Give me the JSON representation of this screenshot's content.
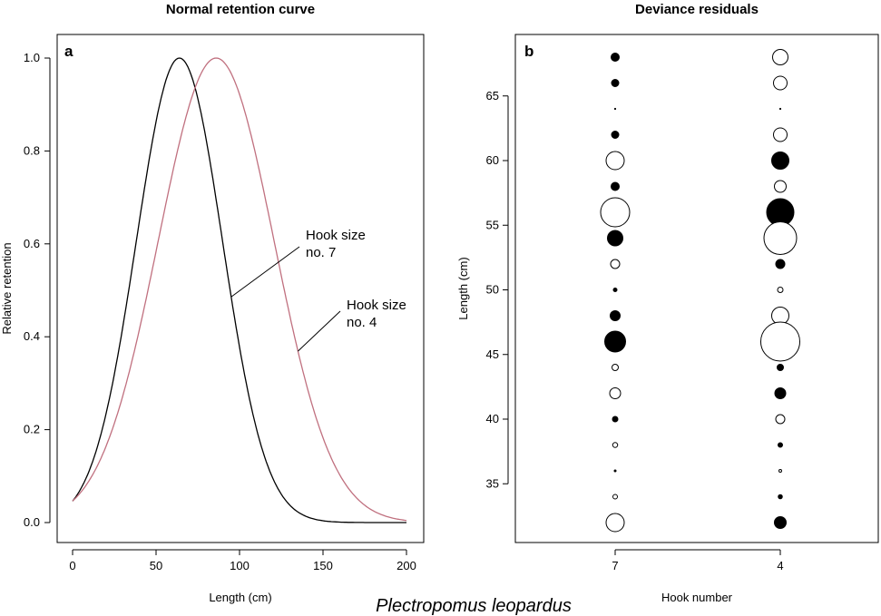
{
  "species_title": "Plectropomus leopardus",
  "chart_data": [
    {
      "type": "line",
      "panel_label": "a",
      "title": "Normal retention curve",
      "xlabel": "Length (cm)",
      "ylabel": "Relative retention",
      "xlim": [
        0,
        200
      ],
      "ylim": [
        0,
        1.0
      ],
      "xticks": [
        0,
        50,
        100,
        150,
        200
      ],
      "yticks": [
        0.0,
        0.2,
        0.4,
        0.6,
        0.8,
        1.0
      ],
      "ytick_labels": [
        "0.0",
        "0.2",
        "0.4",
        "0.6",
        "0.8",
        "1.0"
      ],
      "series": [
        {
          "name": "Hook size no. 7",
          "color": "#000000",
          "mode": 64,
          "sd": 25.8
        },
        {
          "name": "Hook size no. 4",
          "color": "#c0707f",
          "mode": 86,
          "sd": 34.7
        }
      ],
      "annotations": [
        {
          "line1": "Hook size",
          "line2": "no. 7",
          "series": 0,
          "at_x": 95
        },
        {
          "line1": "Hook size",
          "line2": "no. 4",
          "series": 1,
          "at_x": 135
        }
      ]
    },
    {
      "type": "scatter",
      "panel_label": "b",
      "title": "Deviance residuals",
      "xlabel": "Hook number",
      "ylabel": "Length (cm)",
      "categories": [
        "7",
        "4"
      ],
      "ylim": [
        31,
        68.5
      ],
      "yticks": [
        35,
        40,
        45,
        50,
        55,
        60,
        65
      ],
      "legend_note": "filled = positive residual, open = negative residual; size ~ |residual|",
      "points": [
        {
          "hook": "7",
          "length": 68,
          "residual": 0.9
        },
        {
          "hook": "7",
          "length": 66,
          "residual": 0.8
        },
        {
          "hook": "7",
          "length": 64,
          "residual": 0.05
        },
        {
          "hook": "7",
          "length": 62,
          "residual": 0.8
        },
        {
          "hook": "7",
          "length": 60,
          "residual": -2.0
        },
        {
          "hook": "7",
          "length": 58,
          "residual": 0.9
        },
        {
          "hook": "7",
          "length": 56,
          "residual": -3.2
        },
        {
          "hook": "7",
          "length": 54,
          "residual": 1.7
        },
        {
          "hook": "7",
          "length": 52,
          "residual": -1.0
        },
        {
          "hook": "7",
          "length": 50,
          "residual": 0.4
        },
        {
          "hook": "7",
          "length": 48,
          "residual": 1.1
        },
        {
          "hook": "7",
          "length": 46,
          "residual": 2.3
        },
        {
          "hook": "7",
          "length": 44,
          "residual": -0.7
        },
        {
          "hook": "7",
          "length": 42,
          "residual": -1.2
        },
        {
          "hook": "7",
          "length": 40,
          "residual": 0.6
        },
        {
          "hook": "7",
          "length": 38,
          "residual": -0.55
        },
        {
          "hook": "7",
          "length": 36,
          "residual": 0.2
        },
        {
          "hook": "7",
          "length": 34,
          "residual": -0.5
        },
        {
          "hook": "7",
          "length": 32,
          "residual": -2.0
        },
        {
          "hook": "4",
          "length": 68,
          "residual": -1.7
        },
        {
          "hook": "4",
          "length": 66,
          "residual": -1.5
        },
        {
          "hook": "4",
          "length": 64,
          "residual": -0.05
        },
        {
          "hook": "4",
          "length": 62,
          "residual": -1.5
        },
        {
          "hook": "4",
          "length": 60,
          "residual": 1.9
        },
        {
          "hook": "4",
          "length": 58,
          "residual": -1.3
        },
        {
          "hook": "4",
          "length": 56,
          "residual": 3.0
        },
        {
          "hook": "4",
          "length": 54,
          "residual": -3.6
        },
        {
          "hook": "4",
          "length": 52,
          "residual": 1.0
        },
        {
          "hook": "4",
          "length": 50,
          "residual": -0.6
        },
        {
          "hook": "4",
          "length": 48,
          "residual": -1.9
        },
        {
          "hook": "4",
          "length": 46,
          "residual": -4.3
        },
        {
          "hook": "4",
          "length": 44,
          "residual": 0.7
        },
        {
          "hook": "4",
          "length": 42,
          "residual": 1.2
        },
        {
          "hook": "4",
          "length": 40,
          "residual": -1.0
        },
        {
          "hook": "4",
          "length": 38,
          "residual": 0.5
        },
        {
          "hook": "4",
          "length": 36,
          "residual": -0.3
        },
        {
          "hook": "4",
          "length": 34,
          "residual": 0.45
        },
        {
          "hook": "4",
          "length": 32,
          "residual": 1.3
        }
      ]
    }
  ]
}
